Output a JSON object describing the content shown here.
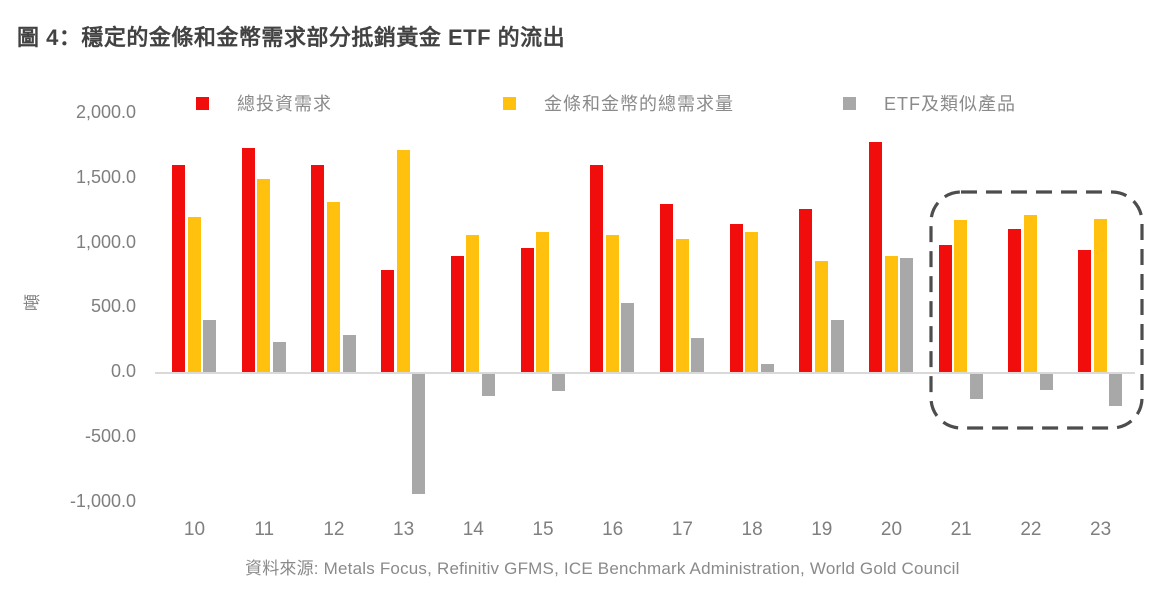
{
  "figure_title": "圖 4：穩定的金條和金幣需求部分抵銷黃金 ETF 的流出",
  "source": "資料來源: Metals Focus, Refinitiv GFMS, ICE Benchmark Administration, World Gold Council",
  "y_axis": {
    "unit_label": "噸",
    "ticks": [
      "2,000.0",
      "1,500.0",
      "1,000.0",
      "500.0",
      "0.0",
      "-500.0",
      "-1,000.0"
    ]
  },
  "colors": {
    "red": "#f20d0d",
    "gold": "#ffc00e",
    "gray": "#a8a8a8",
    "title_text": "#424242",
    "axis_text": "#7f7f7f",
    "legend_text": "#8a8a8a",
    "source_text": "#8a8a8a",
    "zero_line": "#d9d9d9",
    "highlight_border": "#4d4d4d"
  },
  "highlight_box": {
    "label": "years 21-23 highlighted",
    "years": [
      "21",
      "22",
      "23"
    ]
  },
  "chart_data": {
    "type": "bar",
    "title": "圖 4：穩定的金條和金幣需求部分抵銷黃金 ETF 的流出",
    "ylabel": "噸",
    "ylim": [
      -1000,
      2000
    ],
    "ytick_step": 500,
    "grid": false,
    "legend_position": "top",
    "categories": [
      "10",
      "11",
      "12",
      "13",
      "14",
      "15",
      "16",
      "17",
      "18",
      "19",
      "20",
      "21",
      "22",
      "23"
    ],
    "series": [
      {
        "id": "total-investment",
        "name": "總投資需求",
        "color_key": "red",
        "values": [
          1600,
          1730,
          1600,
          790,
          895,
          960,
          1600,
          1300,
          1145,
          1260,
          1775,
          980,
          1105,
          940
        ]
      },
      {
        "id": "bar-and-coin",
        "name": "金條和金幣的總需求量",
        "color_key": "gold",
        "values": [
          1200,
          1490,
          1310,
          1715,
          1060,
          1080,
          1060,
          1030,
          1080,
          860,
          895,
          1175,
          1215,
          1180
        ]
      },
      {
        "id": "etf",
        "name": "ETF及類似產品",
        "color_key": "gray",
        "values": [
          400,
          230,
          285,
          -930,
          -170,
          -130,
          535,
          265,
          65,
          400,
          880,
          -195,
          -120,
          -245
        ]
      }
    ]
  }
}
